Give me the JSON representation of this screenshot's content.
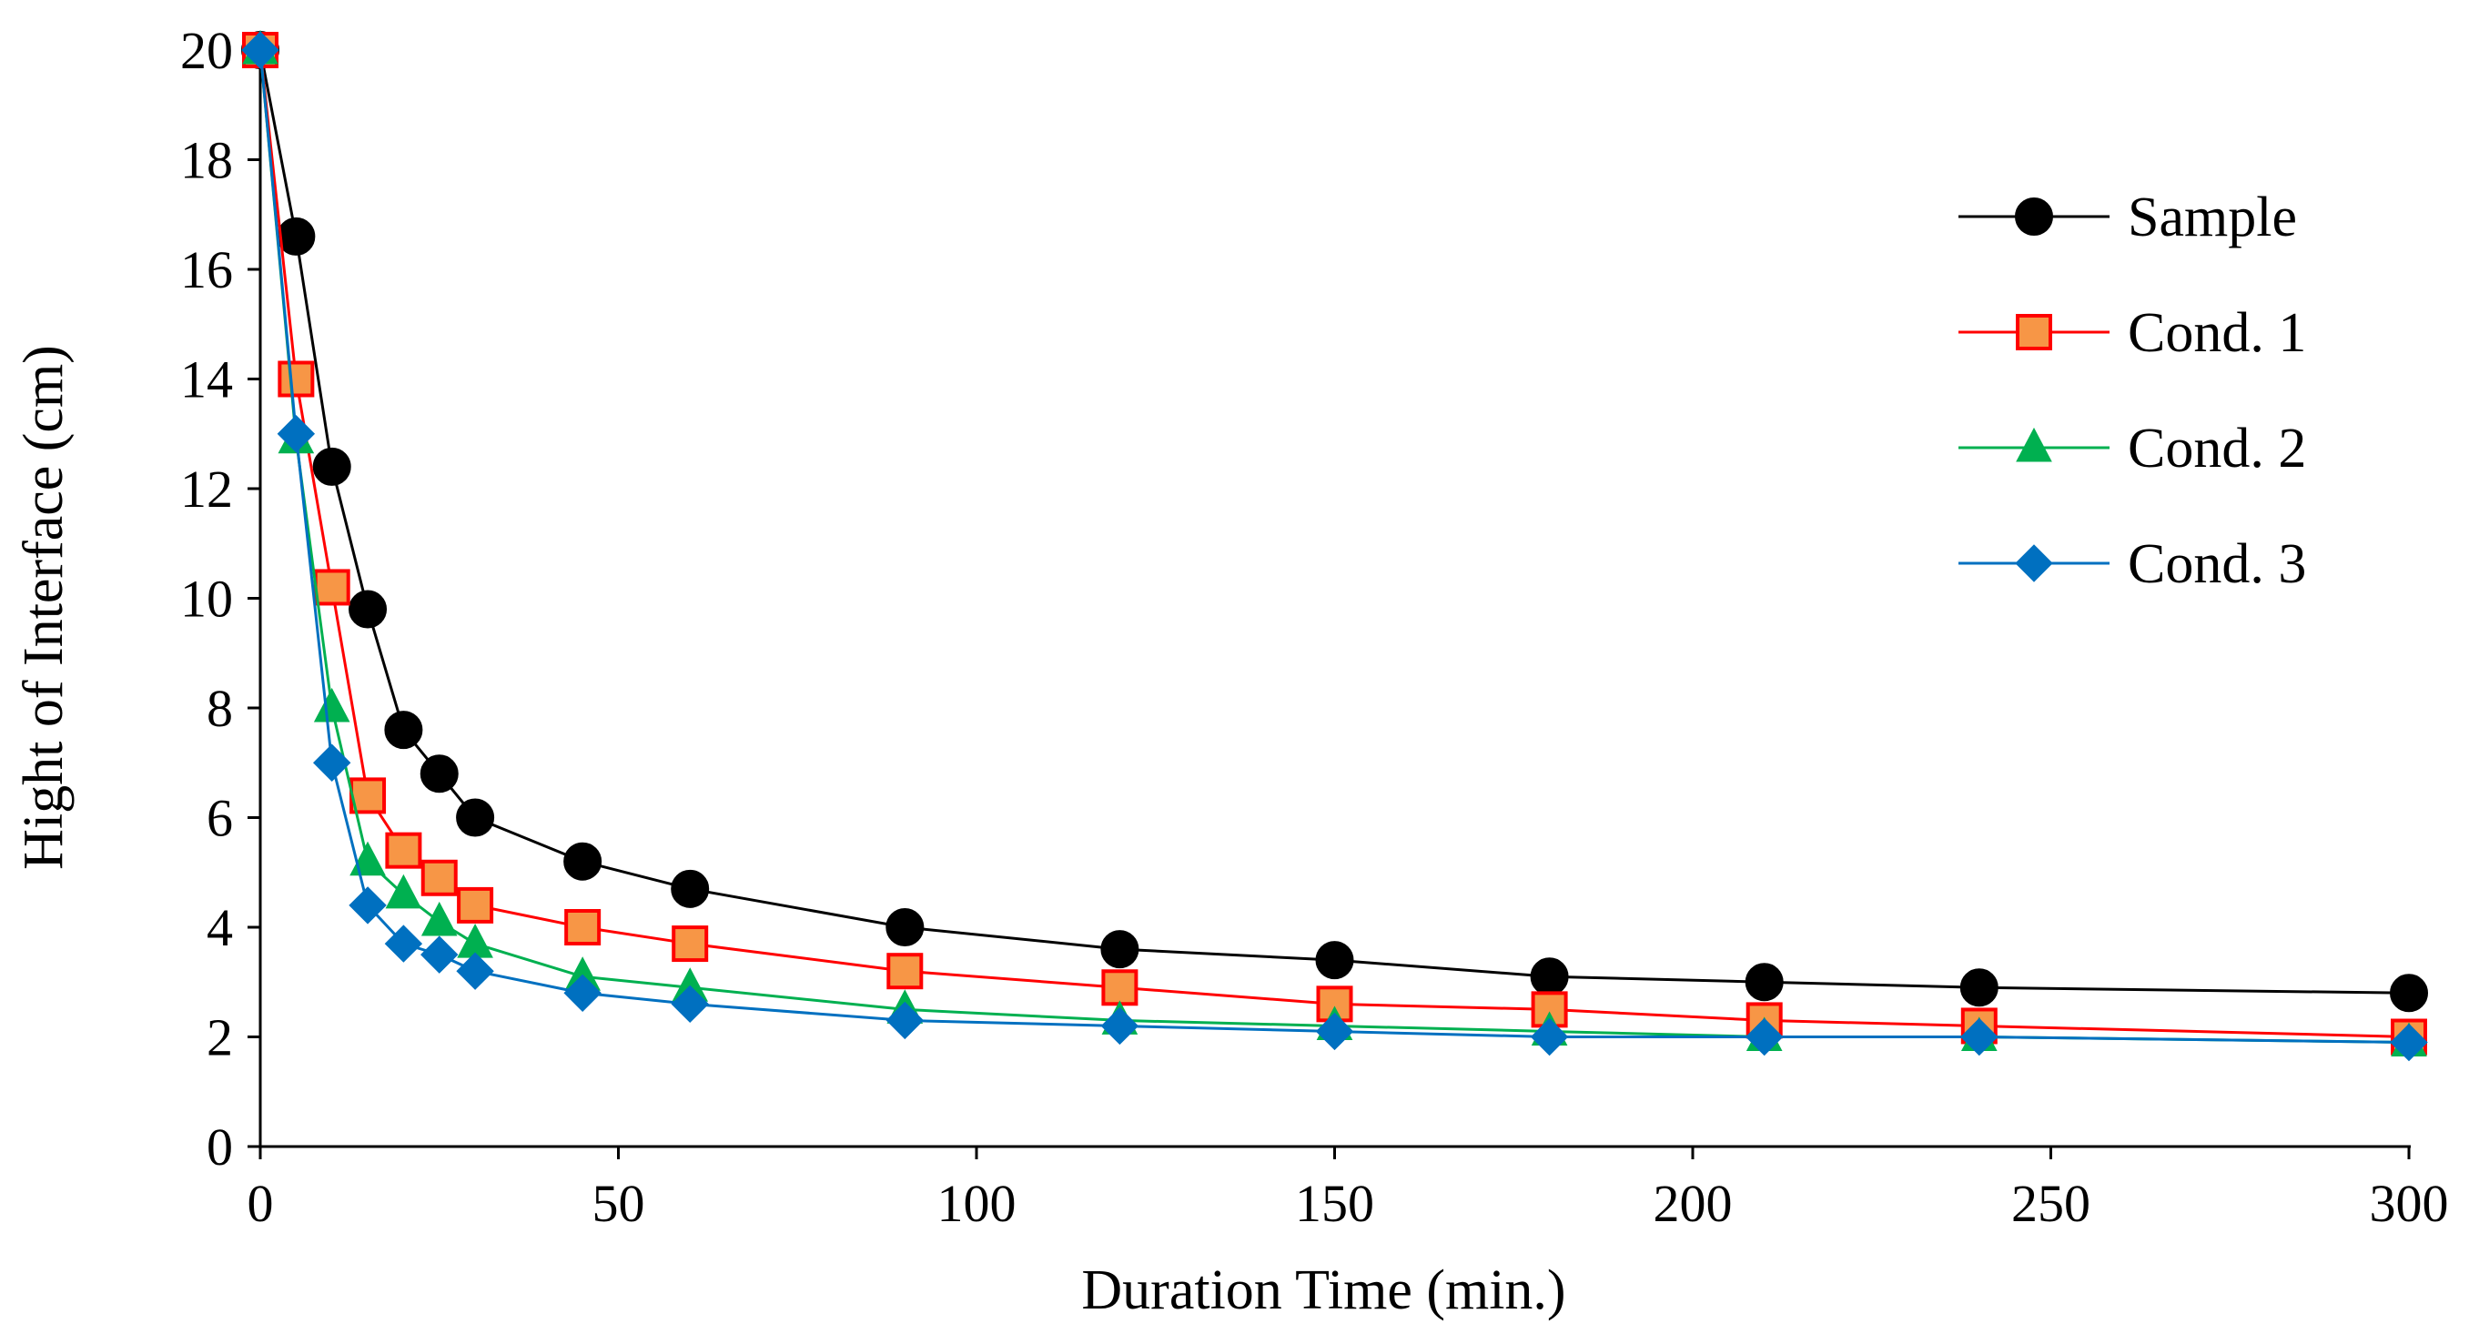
{
  "chart_data": {
    "type": "line",
    "title": "",
    "xlabel": "Duration Time (min.)",
    "ylabel": "Hight of Interface (cm)",
    "xlim": [
      0,
      300
    ],
    "ylim": [
      0,
      20
    ],
    "xticks": [
      0,
      50,
      100,
      150,
      200,
      250,
      300
    ],
    "yticks": [
      0,
      2,
      4,
      6,
      8,
      10,
      12,
      14,
      16,
      18,
      20
    ],
    "grid": false,
    "legend_position": "top-right",
    "x": [
      0,
      5,
      10,
      15,
      20,
      25,
      30,
      45,
      60,
      90,
      120,
      150,
      180,
      210,
      240,
      300
    ],
    "series": [
      {
        "name": "Sample",
        "color": "#000000",
        "marker": "circle",
        "marker_fill": "#000000",
        "values": [
          20,
          16.6,
          12.4,
          9.8,
          7.6,
          6.8,
          6.0,
          5.2,
          4.7,
          4.0,
          3.6,
          3.4,
          3.1,
          3.0,
          2.9,
          2.8
        ]
      },
      {
        "name": "Cond. 1",
        "color": "#ff0000",
        "marker": "square",
        "marker_fill": "#f79646",
        "values": [
          20,
          14.0,
          10.2,
          6.4,
          5.4,
          4.9,
          4.4,
          4.0,
          3.7,
          3.2,
          2.9,
          2.6,
          2.5,
          2.3,
          2.2,
          2.0
        ]
      },
      {
        "name": "Cond. 2",
        "color": "#00b050",
        "marker": "triangle",
        "marker_fill": "#00b050",
        "values": [
          20,
          12.9,
          8.0,
          5.2,
          4.6,
          4.1,
          3.7,
          3.1,
          2.9,
          2.5,
          2.3,
          2.2,
          2.1,
          2.0,
          2.0,
          1.9
        ]
      },
      {
        "name": "Cond. 3",
        "color": "#0070c0",
        "marker": "diamond",
        "marker_fill": "#0070c0",
        "values": [
          20,
          13.0,
          7.0,
          4.4,
          3.7,
          3.5,
          3.2,
          2.8,
          2.6,
          2.3,
          2.2,
          2.1,
          2.0,
          2.0,
          2.0,
          1.9
        ]
      }
    ]
  }
}
